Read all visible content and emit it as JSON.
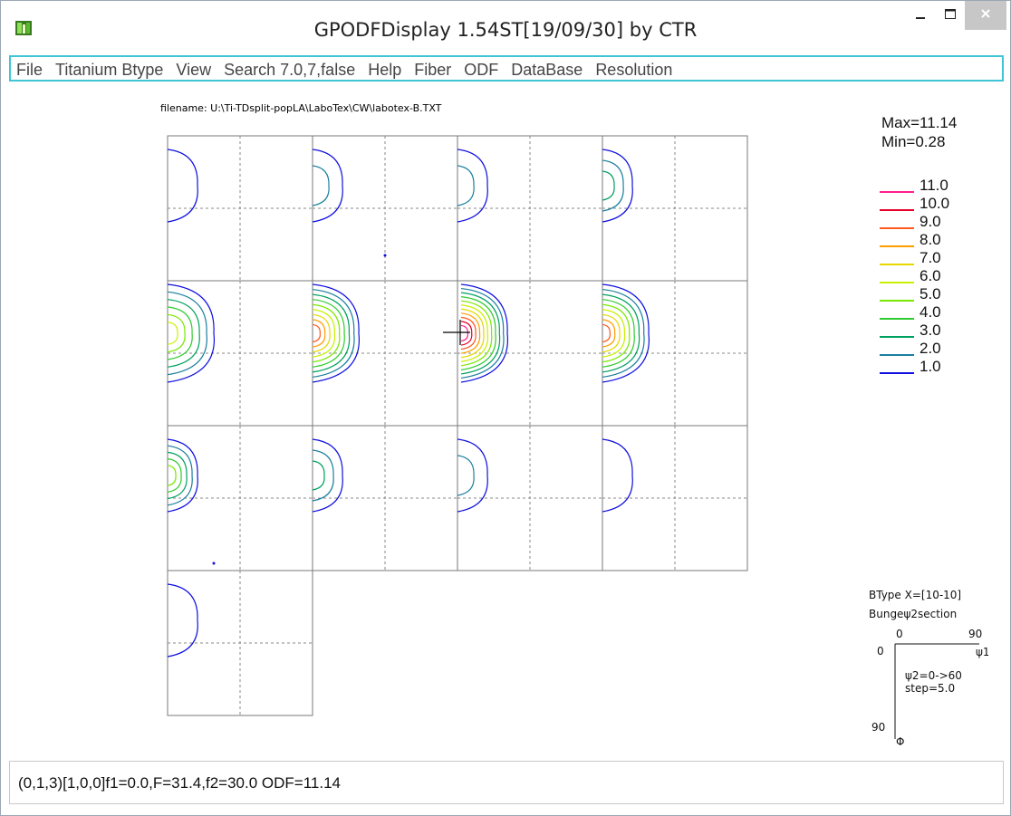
{
  "window": {
    "title": "GPODFDisplay 1.54ST[19/09/30] by CTR"
  },
  "menu": [
    {
      "label": "File"
    },
    {
      "label": "Titanium Btype"
    },
    {
      "label": "View"
    },
    {
      "label": "Search 7.0,7,false"
    },
    {
      "label": "Help"
    },
    {
      "label": "Fiber"
    },
    {
      "label": "ODF"
    },
    {
      "label": "DataBase"
    },
    {
      "label": "Resolution"
    }
  ],
  "plot": {
    "filename": "filename: U:\\Ti-TDsplit-popLA\\LaboTex\\CW\\labotex-B.TXT",
    "max_label": "Max=11.14",
    "min_label": "Min=0.28",
    "legend": [
      {
        "value": "11.0",
        "color": "#ff1e8c"
      },
      {
        "value": "10.0",
        "color": "#e8002a"
      },
      {
        "value": "9.0",
        "color": "#ff5a1e"
      },
      {
        "value": "8.0",
        "color": "#ff9c00"
      },
      {
        "value": "7.0",
        "color": "#e6d800"
      },
      {
        "value": "6.0",
        "color": "#c9f000"
      },
      {
        "value": "5.0",
        "color": "#79e800"
      },
      {
        "value": "4.0",
        "color": "#2ecc2e"
      },
      {
        "value": "3.0",
        "color": "#00a060"
      },
      {
        "value": "2.0",
        "color": "#1a7f9f"
      },
      {
        "value": "1.0",
        "color": "#1010e0"
      }
    ],
    "btype_label": "BType X=[10-10]",
    "section_label": "Bungeψ2section",
    "axis_phi1_start": "0",
    "axis_phi1_end": "90",
    "axis_phi1_name": "ψ1",
    "axis_phi_start": "0",
    "axis_phi_end": "90",
    "axis_phi_name": "Φ",
    "phi2_range": "ψ2=0->60",
    "step_label": "step=5.0"
  },
  "status": {
    "text": "(0,1,3)[1,0,0]f1=0.0,F=31.4,f2=30.0 ODF=11.14"
  }
}
